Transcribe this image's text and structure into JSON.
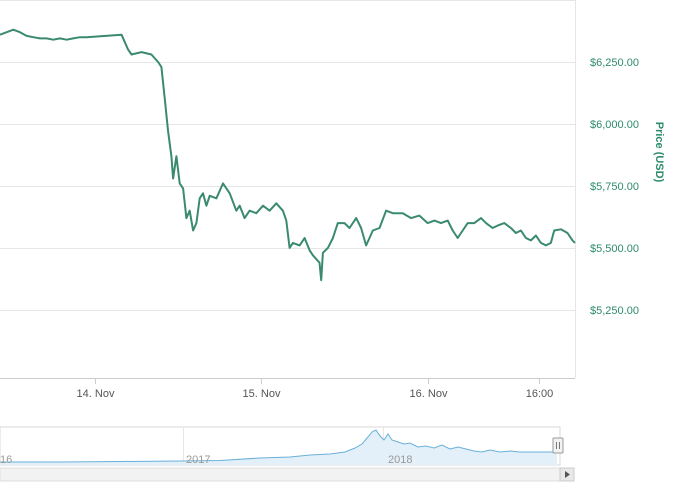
{
  "chart_data": {
    "type": "line",
    "ylabel": "Price (USD)",
    "yticks": [
      "$6,250.00",
      "$6,000.00",
      "$5,750.00",
      "$5,500.00",
      "$5,250.00"
    ],
    "ytick_values": [
      6250,
      6000,
      5750,
      5500,
      5250
    ],
    "ylim": [
      4975,
      6500
    ],
    "xticks": [
      "14. Nov",
      "15. Nov",
      "16. Nov",
      "16:00"
    ],
    "xtick_values": [
      -1,
      0,
      1,
      1.667
    ],
    "xlim": [
      -1.57,
      1.885
    ],
    "grid": true,
    "legend": "none",
    "colors": {
      "line": "#3a8a6e",
      "grid": "#e6e6e6",
      "axis_label": "#2e8b6b",
      "navigator_line": "#6ab0d8",
      "navigator_fill": "#e3f0f9"
    },
    "series": [
      {
        "points": [
          [
            -1.57,
            6360
          ],
          [
            -1.53,
            6370
          ],
          [
            -1.49,
            6380
          ],
          [
            -1.45,
            6370
          ],
          [
            -1.41,
            6355
          ],
          [
            -1.37,
            6350
          ],
          [
            -1.33,
            6345
          ],
          [
            -1.29,
            6345
          ],
          [
            -1.25,
            6340
          ],
          [
            -1.21,
            6345
          ],
          [
            -1.17,
            6340
          ],
          [
            -1.13,
            6345
          ],
          [
            -1.09,
            6350
          ],
          [
            -1.05,
            6350
          ],
          [
            -0.84,
            6360
          ],
          [
            -0.8,
            6300
          ],
          [
            -0.78,
            6280
          ],
          [
            -0.72,
            6290
          ],
          [
            -0.66,
            6280
          ],
          [
            -0.62,
            6250
          ],
          [
            -0.6,
            6230
          ],
          [
            -0.58,
            6100
          ],
          [
            -0.56,
            5970
          ],
          [
            -0.54,
            5870
          ],
          [
            -0.53,
            5780
          ],
          [
            -0.51,
            5870
          ],
          [
            -0.49,
            5760
          ],
          [
            -0.47,
            5740
          ],
          [
            -0.45,
            5620
          ],
          [
            -0.43,
            5650
          ],
          [
            -0.41,
            5570
          ],
          [
            -0.39,
            5600
          ],
          [
            -0.37,
            5700
          ],
          [
            -0.35,
            5720
          ],
          [
            -0.33,
            5670
          ],
          [
            -0.31,
            5710
          ],
          [
            -0.27,
            5700
          ],
          [
            -0.23,
            5760
          ],
          [
            -0.19,
            5720
          ],
          [
            -0.15,
            5650
          ],
          [
            -0.13,
            5670
          ],
          [
            -0.1,
            5620
          ],
          [
            -0.07,
            5650
          ],
          [
            -0.03,
            5640
          ],
          [
            0.01,
            5670
          ],
          [
            0.05,
            5650
          ],
          [
            0.09,
            5680
          ],
          [
            0.13,
            5650
          ],
          [
            0.15,
            5610
          ],
          [
            0.17,
            5500
          ],
          [
            0.19,
            5520
          ],
          [
            0.23,
            5510
          ],
          [
            0.26,
            5540
          ],
          [
            0.29,
            5490
          ],
          [
            0.31,
            5470
          ],
          [
            0.35,
            5440
          ],
          [
            0.36,
            5370
          ],
          [
            0.37,
            5480
          ],
          [
            0.4,
            5500
          ],
          [
            0.43,
            5540
          ],
          [
            0.46,
            5600
          ],
          [
            0.5,
            5600
          ],
          [
            0.53,
            5580
          ],
          [
            0.57,
            5620
          ],
          [
            0.6,
            5580
          ],
          [
            0.63,
            5510
          ],
          [
            0.65,
            5540
          ],
          [
            0.67,
            5570
          ],
          [
            0.71,
            5580
          ],
          [
            0.75,
            5650
          ],
          [
            0.79,
            5640
          ],
          [
            0.85,
            5640
          ],
          [
            0.9,
            5620
          ],
          [
            0.95,
            5630
          ],
          [
            1.0,
            5600
          ],
          [
            1.04,
            5610
          ],
          [
            1.08,
            5600
          ],
          [
            1.12,
            5610
          ],
          [
            1.15,
            5570
          ],
          [
            1.18,
            5540
          ],
          [
            1.2,
            5560
          ],
          [
            1.24,
            5600
          ],
          [
            1.28,
            5600
          ],
          [
            1.32,
            5620
          ],
          [
            1.35,
            5600
          ],
          [
            1.39,
            5580
          ],
          [
            1.42,
            5590
          ],
          [
            1.46,
            5600
          ],
          [
            1.5,
            5580
          ],
          [
            1.53,
            5560
          ],
          [
            1.56,
            5570
          ],
          [
            1.59,
            5540
          ],
          [
            1.62,
            5530
          ],
          [
            1.65,
            5550
          ],
          [
            1.68,
            5520
          ],
          [
            1.71,
            5510
          ],
          [
            1.74,
            5520
          ],
          [
            1.76,
            5570
          ],
          [
            1.8,
            5575
          ],
          [
            1.84,
            5560
          ],
          [
            1.87,
            5530
          ],
          [
            1.885,
            5520
          ]
        ]
      }
    ],
    "navigator": {
      "labels": [
        "16",
        "2017",
        "2018"
      ]
    }
  }
}
